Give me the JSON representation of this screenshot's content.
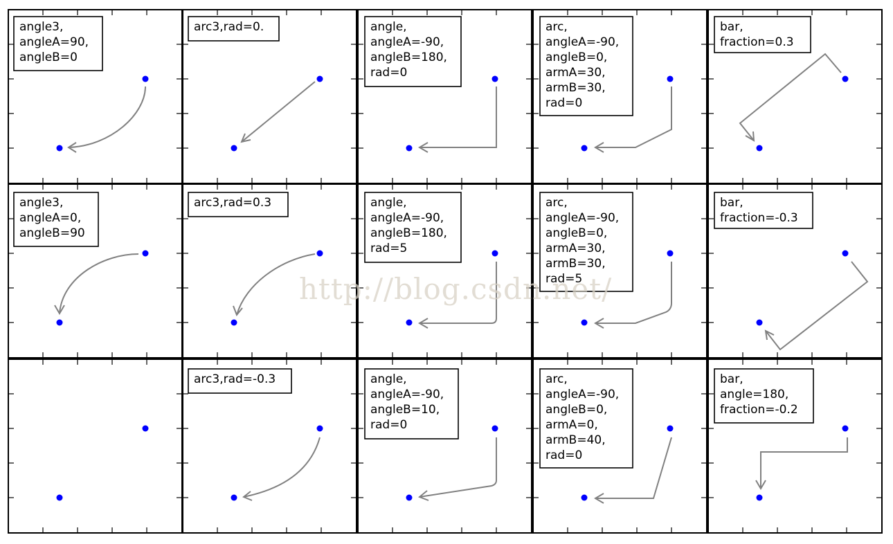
{
  "panels": [
    {
      "id": "r1c1",
      "style": "angle3,\nangleA=90,\nangleB=0"
    },
    {
      "id": "r1c2",
      "style": "arc3,rad=0."
    },
    {
      "id": "r1c3",
      "style": "angle,\nangleA=-90,\nangleB=180,\nrad=0"
    },
    {
      "id": "r1c4",
      "style": "arc,\nangleA=-90,\nangleB=0,\narmA=30,\narmB=30,\nrad=0"
    },
    {
      "id": "r1c5",
      "style": "bar,\nfraction=0.3"
    },
    {
      "id": "r2c1",
      "style": "angle3,\nangleA=0,\nangleB=90"
    },
    {
      "id": "r2c2",
      "style": "arc3,rad=0.3"
    },
    {
      "id": "r2c3",
      "style": "angle,\nangleA=-90,\nangleB=180,\nrad=5"
    },
    {
      "id": "r2c4",
      "style": "arc,\nangleA=-90,\nangleB=0,\narmA=30,\narmB=30,\nrad=5"
    },
    {
      "id": "r2c5",
      "style": "bar,\nfraction=-0.3"
    },
    {
      "id": "r3c1",
      "style": ""
    },
    {
      "id": "r3c2",
      "style": "arc3,rad=-0.3"
    },
    {
      "id": "r3c3",
      "style": "angle,\nangleA=-90,\nangleB=10,\nrad=0"
    },
    {
      "id": "r3c4",
      "style": "arc,\nangleA=-90,\nangleB=0,\narmA=0,\narmB=40,\nrad=0"
    },
    {
      "id": "r3c5",
      "style": "bar,\nangle=180,\nfraction=-0.2"
    }
  ],
  "watermark": "http://blog.csdn.net/",
  "colors": {
    "point": "#0000ff",
    "connector": "#808080",
    "frame": "#000000"
  }
}
